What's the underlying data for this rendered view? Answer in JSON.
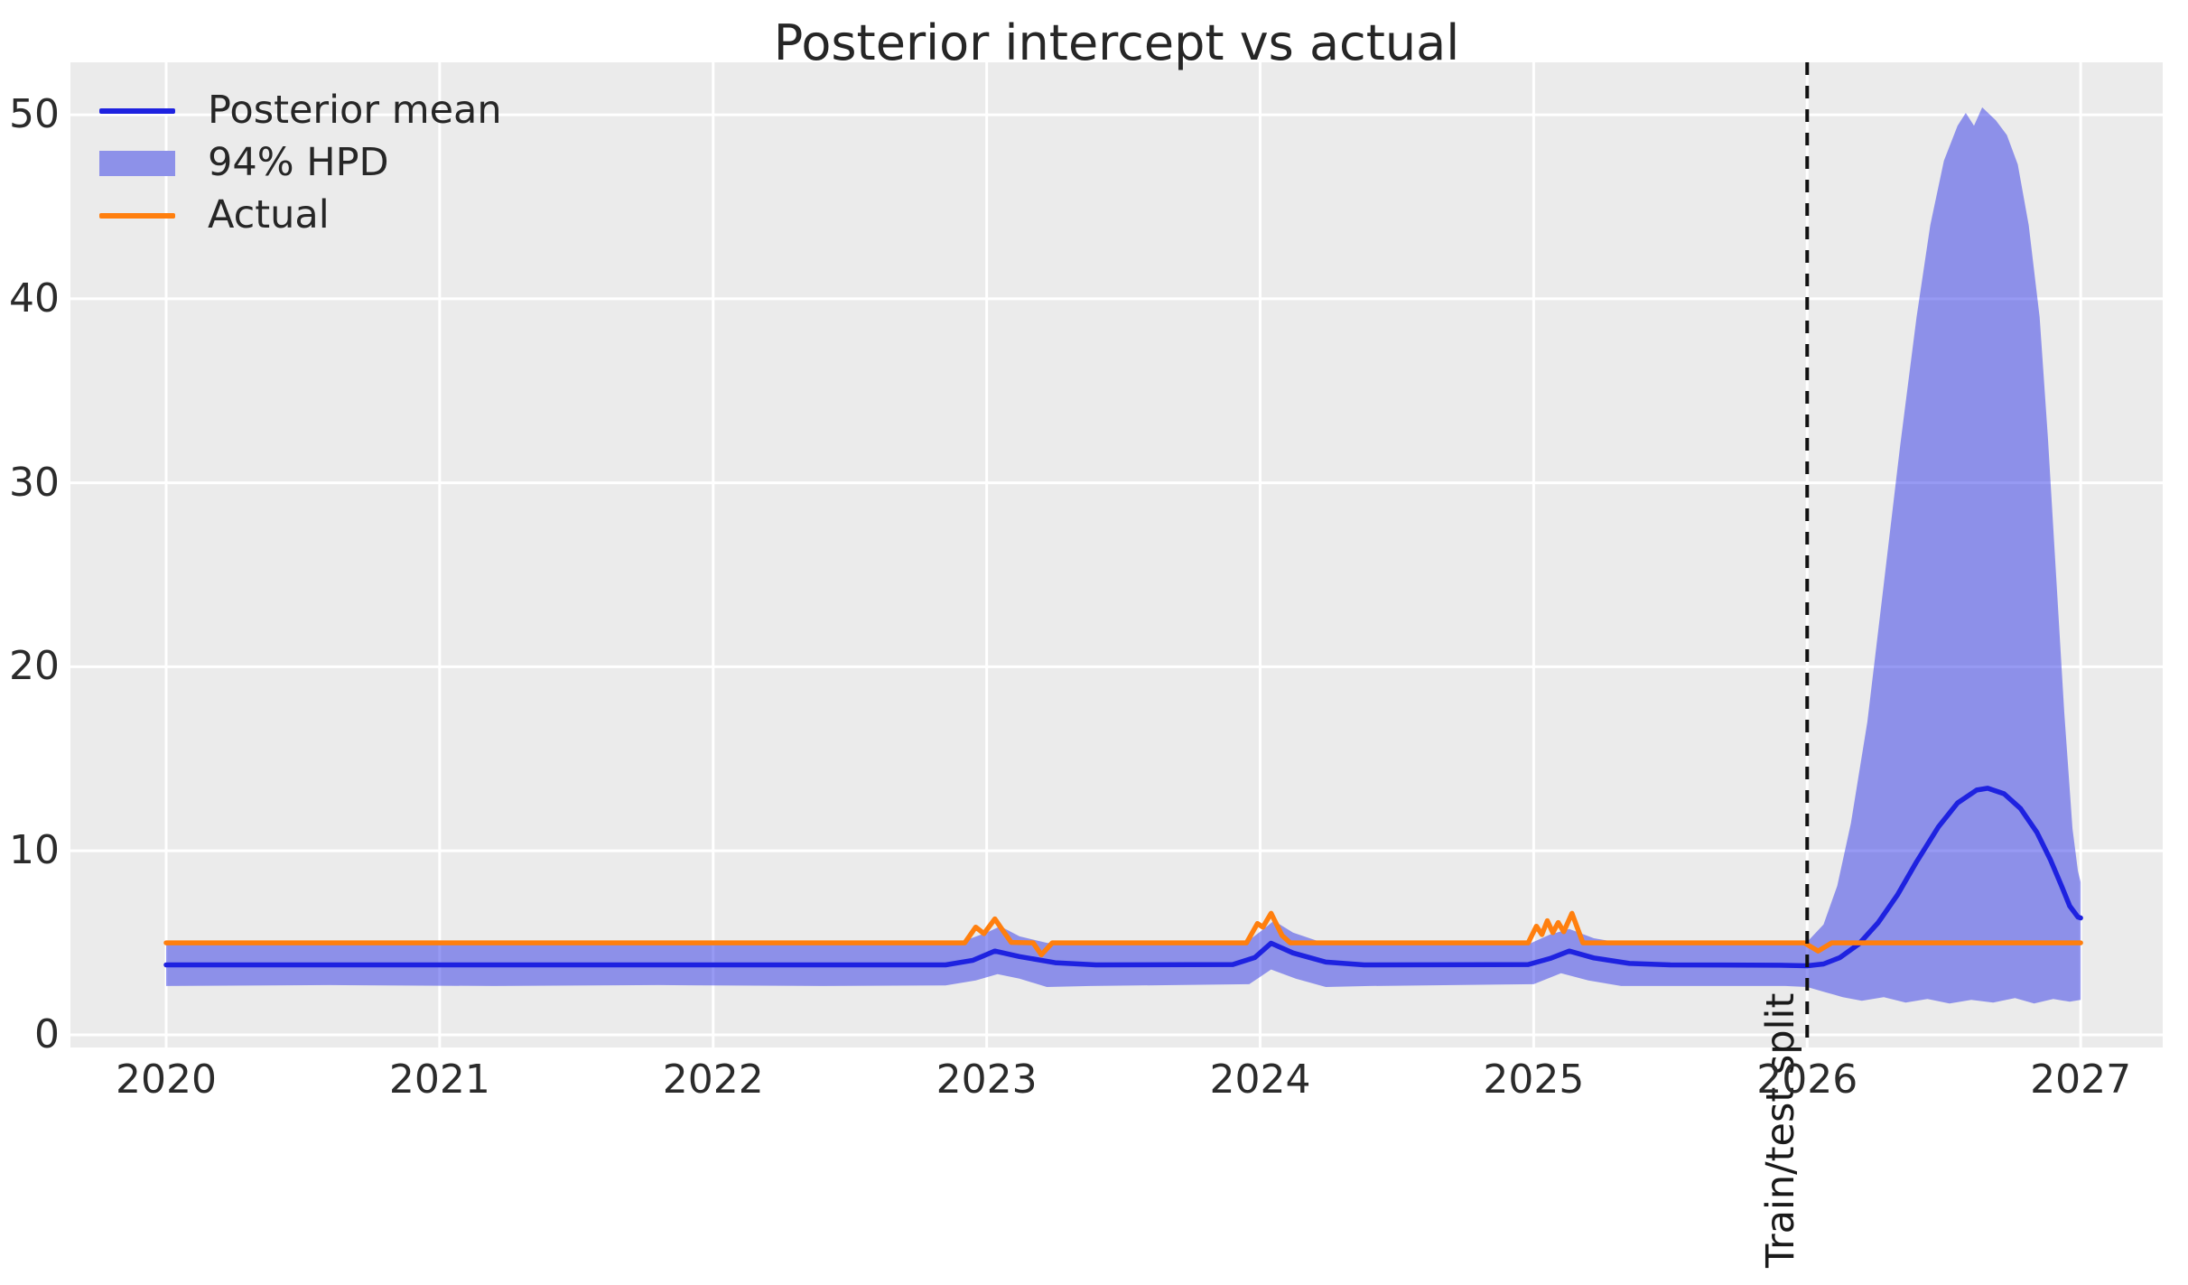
{
  "chart_data": {
    "type": "line",
    "title": "Posterior intercept vs actual",
    "xlabel": "",
    "ylabel": "",
    "xlim": [
      2019.65,
      2027.3
    ],
    "ylim": [
      -0.69,
      52.85
    ],
    "grid": true,
    "background_color": "#ebebeb",
    "grid_color": "#ffffff",
    "x_ticks": [
      2020,
      2021,
      2022,
      2023,
      2024,
      2025,
      2026,
      2027
    ],
    "x_tick_labels": [
      "2020",
      "2021",
      "2022",
      "2023",
      "2024",
      "2025",
      "2026",
      "2027"
    ],
    "y_ticks": [
      0,
      10,
      20,
      30,
      40,
      50
    ],
    "y_tick_labels": [
      "0",
      "10",
      "20",
      "30",
      "40",
      "50"
    ],
    "legend": {
      "position": "upper-left",
      "items": [
        {
          "label": "Posterior mean",
          "marker": "line",
          "color": "#1e22e0"
        },
        {
          "label": "94% HPD",
          "marker": "patch",
          "color": "#8d91e9"
        },
        {
          "label": "Actual",
          "marker": "line",
          "color": "#ff7f0e"
        }
      ]
    },
    "vline": {
      "x": 2026.0,
      "style": "dashed",
      "color": "#111111",
      "label": "Train/test split"
    },
    "series": [
      {
        "name": "Posterior mean",
        "type": "line",
        "color": "#1e22e0",
        "points": [
          [
            2020.0,
            3.8
          ],
          [
            2020.5,
            3.8
          ],
          [
            2021.0,
            3.8
          ],
          [
            2021.5,
            3.8
          ],
          [
            2022.0,
            3.8
          ],
          [
            2022.5,
            3.8
          ],
          [
            2022.85,
            3.8
          ],
          [
            2022.95,
            4.05
          ],
          [
            2023.03,
            4.55
          ],
          [
            2023.12,
            4.25
          ],
          [
            2023.25,
            3.92
          ],
          [
            2023.4,
            3.8
          ],
          [
            2023.9,
            3.82
          ],
          [
            2023.98,
            4.2
          ],
          [
            2024.04,
            4.98
          ],
          [
            2024.12,
            4.45
          ],
          [
            2024.24,
            3.95
          ],
          [
            2024.38,
            3.8
          ],
          [
            2024.98,
            3.82
          ],
          [
            2025.06,
            4.15
          ],
          [
            2025.13,
            4.55
          ],
          [
            2025.22,
            4.18
          ],
          [
            2025.35,
            3.88
          ],
          [
            2025.5,
            3.8
          ],
          [
            2025.9,
            3.78
          ],
          [
            2026.0,
            3.75
          ],
          [
            2026.06,
            3.85
          ],
          [
            2026.12,
            4.2
          ],
          [
            2026.19,
            4.95
          ],
          [
            2026.26,
            6.1
          ],
          [
            2026.33,
            7.6
          ],
          [
            2026.4,
            9.4
          ],
          [
            2026.48,
            11.3
          ],
          [
            2026.55,
            12.6
          ],
          [
            2026.62,
            13.3
          ],
          [
            2026.66,
            13.4
          ],
          [
            2026.72,
            13.1
          ],
          [
            2026.78,
            12.3
          ],
          [
            2026.84,
            11.0
          ],
          [
            2026.89,
            9.5
          ],
          [
            2026.93,
            8.1
          ],
          [
            2026.96,
            7.0
          ],
          [
            2026.99,
            6.4
          ],
          [
            2027.0,
            6.35
          ]
        ]
      },
      {
        "name": "94% HPD",
        "type": "band",
        "fill_color": "rgba(55,62,232,0.52)",
        "upper": [
          [
            2020.0,
            4.9
          ],
          [
            2021.0,
            4.9
          ],
          [
            2022.0,
            4.9
          ],
          [
            2022.88,
            4.9
          ],
          [
            2023.0,
            5.55
          ],
          [
            2023.05,
            5.9
          ],
          [
            2023.12,
            5.35
          ],
          [
            2023.22,
            5.0
          ],
          [
            2023.35,
            4.9
          ],
          [
            2023.94,
            4.92
          ],
          [
            2024.0,
            5.6
          ],
          [
            2024.05,
            6.2
          ],
          [
            2024.12,
            5.55
          ],
          [
            2024.22,
            5.05
          ],
          [
            2024.35,
            4.9
          ],
          [
            2024.98,
            4.92
          ],
          [
            2025.06,
            5.45
          ],
          [
            2025.13,
            5.75
          ],
          [
            2025.22,
            5.25
          ],
          [
            2025.35,
            4.92
          ],
          [
            2025.9,
            4.9
          ],
          [
            2026.0,
            5.05
          ],
          [
            2026.06,
            6.0
          ],
          [
            2026.11,
            8.1
          ],
          [
            2026.16,
            11.5
          ],
          [
            2026.22,
            17.0
          ],
          [
            2026.28,
            24.5
          ],
          [
            2026.34,
            32.0
          ],
          [
            2026.4,
            39.0
          ],
          [
            2026.45,
            44.0
          ],
          [
            2026.5,
            47.5
          ],
          [
            2026.55,
            49.4
          ],
          [
            2026.58,
            50.1
          ],
          [
            2026.61,
            49.4
          ],
          [
            2026.64,
            50.4
          ],
          [
            2026.69,
            49.7
          ],
          [
            2026.73,
            48.9
          ],
          [
            2026.77,
            47.3
          ],
          [
            2026.81,
            44.0
          ],
          [
            2026.85,
            39.0
          ],
          [
            2026.88,
            32.5
          ],
          [
            2026.91,
            25.0
          ],
          [
            2026.94,
            17.5
          ],
          [
            2026.97,
            11.2
          ],
          [
            2026.99,
            8.9
          ],
          [
            2027.0,
            8.3
          ]
        ],
        "lower": [
          [
            2020.0,
            2.65
          ],
          [
            2020.6,
            2.7
          ],
          [
            2021.2,
            2.65
          ],
          [
            2021.8,
            2.7
          ],
          [
            2022.4,
            2.65
          ],
          [
            2022.85,
            2.68
          ],
          [
            2022.96,
            2.95
          ],
          [
            2023.04,
            3.3
          ],
          [
            2023.12,
            3.05
          ],
          [
            2023.22,
            2.6
          ],
          [
            2023.38,
            2.65
          ],
          [
            2023.96,
            2.75
          ],
          [
            2024.04,
            3.55
          ],
          [
            2024.13,
            3.05
          ],
          [
            2024.24,
            2.6
          ],
          [
            2024.4,
            2.65
          ],
          [
            2025.0,
            2.75
          ],
          [
            2025.1,
            3.35
          ],
          [
            2025.2,
            2.95
          ],
          [
            2025.32,
            2.65
          ],
          [
            2025.55,
            2.65
          ],
          [
            2025.92,
            2.65
          ],
          [
            2026.0,
            2.6
          ],
          [
            2026.07,
            2.3
          ],
          [
            2026.13,
            2.05
          ],
          [
            2026.2,
            1.85
          ],
          [
            2026.28,
            2.05
          ],
          [
            2026.36,
            1.75
          ],
          [
            2026.44,
            1.95
          ],
          [
            2026.52,
            1.7
          ],
          [
            2026.6,
            1.9
          ],
          [
            2026.68,
            1.75
          ],
          [
            2026.76,
            2.0
          ],
          [
            2026.83,
            1.7
          ],
          [
            2026.9,
            1.95
          ],
          [
            2026.96,
            1.8
          ],
          [
            2027.0,
            1.9
          ]
        ]
      },
      {
        "name": "Actual",
        "type": "line",
        "color": "#ff7f0e",
        "points": [
          [
            2020.0,
            5.0
          ],
          [
            2021.0,
            5.0
          ],
          [
            2022.0,
            5.0
          ],
          [
            2022.92,
            5.0
          ],
          [
            2022.96,
            5.85
          ],
          [
            2022.99,
            5.5
          ],
          [
            2023.03,
            6.3
          ],
          [
            2023.06,
            5.65
          ],
          [
            2023.09,
            5.02
          ],
          [
            2023.17,
            5.0
          ],
          [
            2023.2,
            4.35
          ],
          [
            2023.24,
            5.0
          ],
          [
            2023.95,
            5.0
          ],
          [
            2023.99,
            6.05
          ],
          [
            2024.01,
            5.85
          ],
          [
            2024.04,
            6.6
          ],
          [
            2024.08,
            5.4
          ],
          [
            2024.11,
            5.0
          ],
          [
            2024.98,
            5.0
          ],
          [
            2025.01,
            5.9
          ],
          [
            2025.03,
            5.45
          ],
          [
            2025.05,
            6.2
          ],
          [
            2025.07,
            5.55
          ],
          [
            2025.09,
            6.1
          ],
          [
            2025.11,
            5.6
          ],
          [
            2025.14,
            6.6
          ],
          [
            2025.18,
            5.0
          ],
          [
            2025.99,
            5.0
          ],
          [
            2026.04,
            4.55
          ],
          [
            2026.09,
            5.0
          ],
          [
            2026.5,
            5.0
          ],
          [
            2027.0,
            5.0
          ]
        ]
      }
    ]
  }
}
